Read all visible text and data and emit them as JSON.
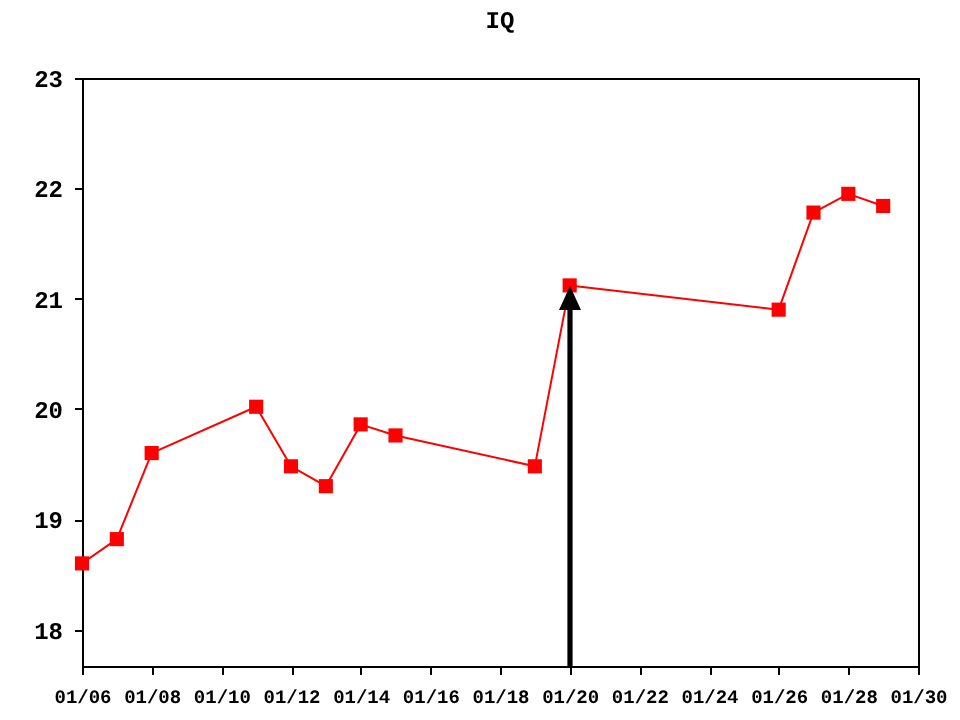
{
  "chart_data": {
    "type": "line",
    "title": "IQ",
    "x": [
      "--01-06",
      "--01-07",
      "--01-08",
      "--01-11",
      "--01-12",
      "--01-13",
      "--01-14",
      "--01-15",
      "--01-19",
      "--01-20",
      "--01-26",
      "--01-27",
      "--01-28",
      "--01-29"
    ],
    "series": [
      {
        "color": "#ff0000",
        "values": [
          18.6,
          18.82,
          19.6,
          20.02,
          19.48,
          19.3,
          19.86,
          19.76,
          19.48,
          21.12,
          20.9,
          21.78,
          21.95,
          21.84
        ]
      }
    ],
    "xlim": [
      "--01-06",
      "--01-30"
    ],
    "xticks": [
      {
        "value": "--01-06",
        "label": "01/06"
      },
      {
        "value": "--01-08",
        "label": "01/08"
      },
      {
        "value": "--01-10",
        "label": "01/10"
      },
      {
        "value": "--01-12",
        "label": "01/12"
      },
      {
        "value": "--01-14",
        "label": "01/14"
      },
      {
        "value": "--01-16",
        "label": "01/16"
      },
      {
        "value": "--01-18",
        "label": "01/18"
      },
      {
        "value": "--01-20",
        "label": "01/20"
      },
      {
        "value": "--01-22",
        "label": "01/22"
      },
      {
        "value": "--01-24",
        "label": "01/24"
      },
      {
        "value": "--01-26",
        "label": "01/26"
      },
      {
        "value": "--01-28",
        "label": "01/28"
      },
      {
        "value": "--01-30",
        "label": "01/30"
      }
    ],
    "ylim": [
      17.67,
      23
    ],
    "yticks": [
      18,
      19,
      20,
      21,
      22,
      23
    ],
    "marker": "square",
    "line_style": "solid",
    "grid": false,
    "legend": false
  }
}
